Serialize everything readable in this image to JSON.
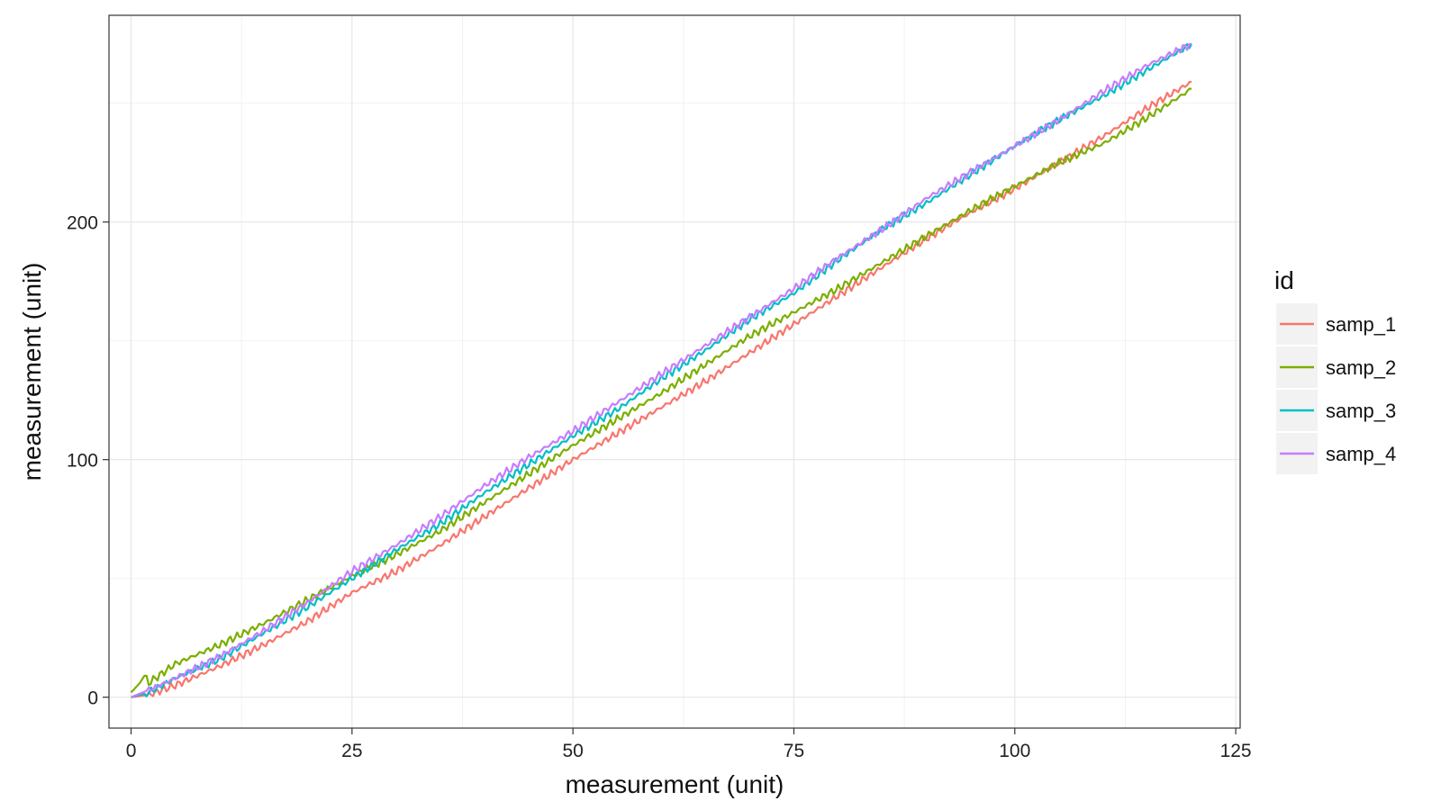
{
  "chart_data": {
    "type": "line",
    "title": "",
    "xlabel": "measurement (unit)",
    "ylabel": "measurement (unit)",
    "xlim": [
      -2.5,
      125.5
    ],
    "ylim": [
      -13,
      287
    ],
    "x_ticks": [
      0,
      25,
      50,
      75,
      100,
      125
    ],
    "x_tick_labels": [
      "0",
      "25",
      "50",
      "75",
      "100",
      "125"
    ],
    "y_ticks": [
      0,
      100,
      200
    ],
    "y_tick_labels": [
      "0",
      "100",
      "200"
    ],
    "grid": true,
    "legend": {
      "title": "id",
      "position": "right"
    },
    "series": [
      {
        "name": "samp_1",
        "color": "#F8766D",
        "x": [
          0,
          2,
          5,
          10,
          15,
          20,
          25,
          30,
          35,
          40,
          45,
          50,
          55,
          60,
          65,
          70,
          75,
          80,
          85,
          90,
          95,
          100,
          105,
          110,
          115,
          120
        ],
        "y": [
          0,
          1,
          5,
          13,
          22,
          32,
          44,
          53,
          64,
          76,
          88,
          100,
          111,
          122,
          133,
          145,
          157,
          169,
          181,
          193,
          204,
          214,
          225,
          236,
          248,
          259
        ]
      },
      {
        "name": "samp_2",
        "color": "#7CAE00",
        "x": [
          0,
          1,
          1.5,
          2,
          5,
          10,
          15,
          20,
          25,
          30,
          35,
          40,
          45,
          50,
          55,
          60,
          65,
          70,
          75,
          80,
          85,
          90,
          95,
          100,
          105,
          110,
          115,
          120
        ],
        "y": [
          2,
          6,
          9,
          6,
          14,
          22,
          31,
          41,
          51,
          60,
          70,
          82,
          94,
          106,
          117,
          128,
          140,
          152,
          162,
          172,
          183,
          194,
          205,
          215,
          225,
          233,
          244,
          256
        ]
      },
      {
        "name": "samp_3",
        "color": "#00BFC4",
        "x": [
          0,
          2,
          5,
          10,
          15,
          20,
          25,
          30,
          35,
          40,
          45,
          50,
          55,
          60,
          65,
          70,
          75,
          80,
          85,
          90,
          95,
          100,
          105,
          110,
          115,
          120
        ],
        "y": [
          0,
          2,
          8,
          16,
          27,
          38,
          50,
          62,
          73,
          86,
          98,
          110,
          121,
          134,
          146,
          159,
          170,
          184,
          197,
          208,
          220,
          232,
          243,
          253,
          264,
          275
        ]
      },
      {
        "name": "samp_4",
        "color": "#C77CFF",
        "x": [
          0,
          2,
          5,
          10,
          15,
          20,
          25,
          30,
          35,
          40,
          45,
          50,
          55,
          60,
          65,
          70,
          75,
          80,
          85,
          90,
          95,
          100,
          105,
          110,
          115,
          120
        ],
        "y": [
          0,
          3,
          8,
          17,
          28,
          40,
          53,
          64,
          76,
          89,
          101,
          112,
          124,
          136,
          148,
          160,
          172,
          185,
          197,
          210,
          221,
          232,
          243,
          255,
          266,
          275
        ]
      }
    ]
  }
}
